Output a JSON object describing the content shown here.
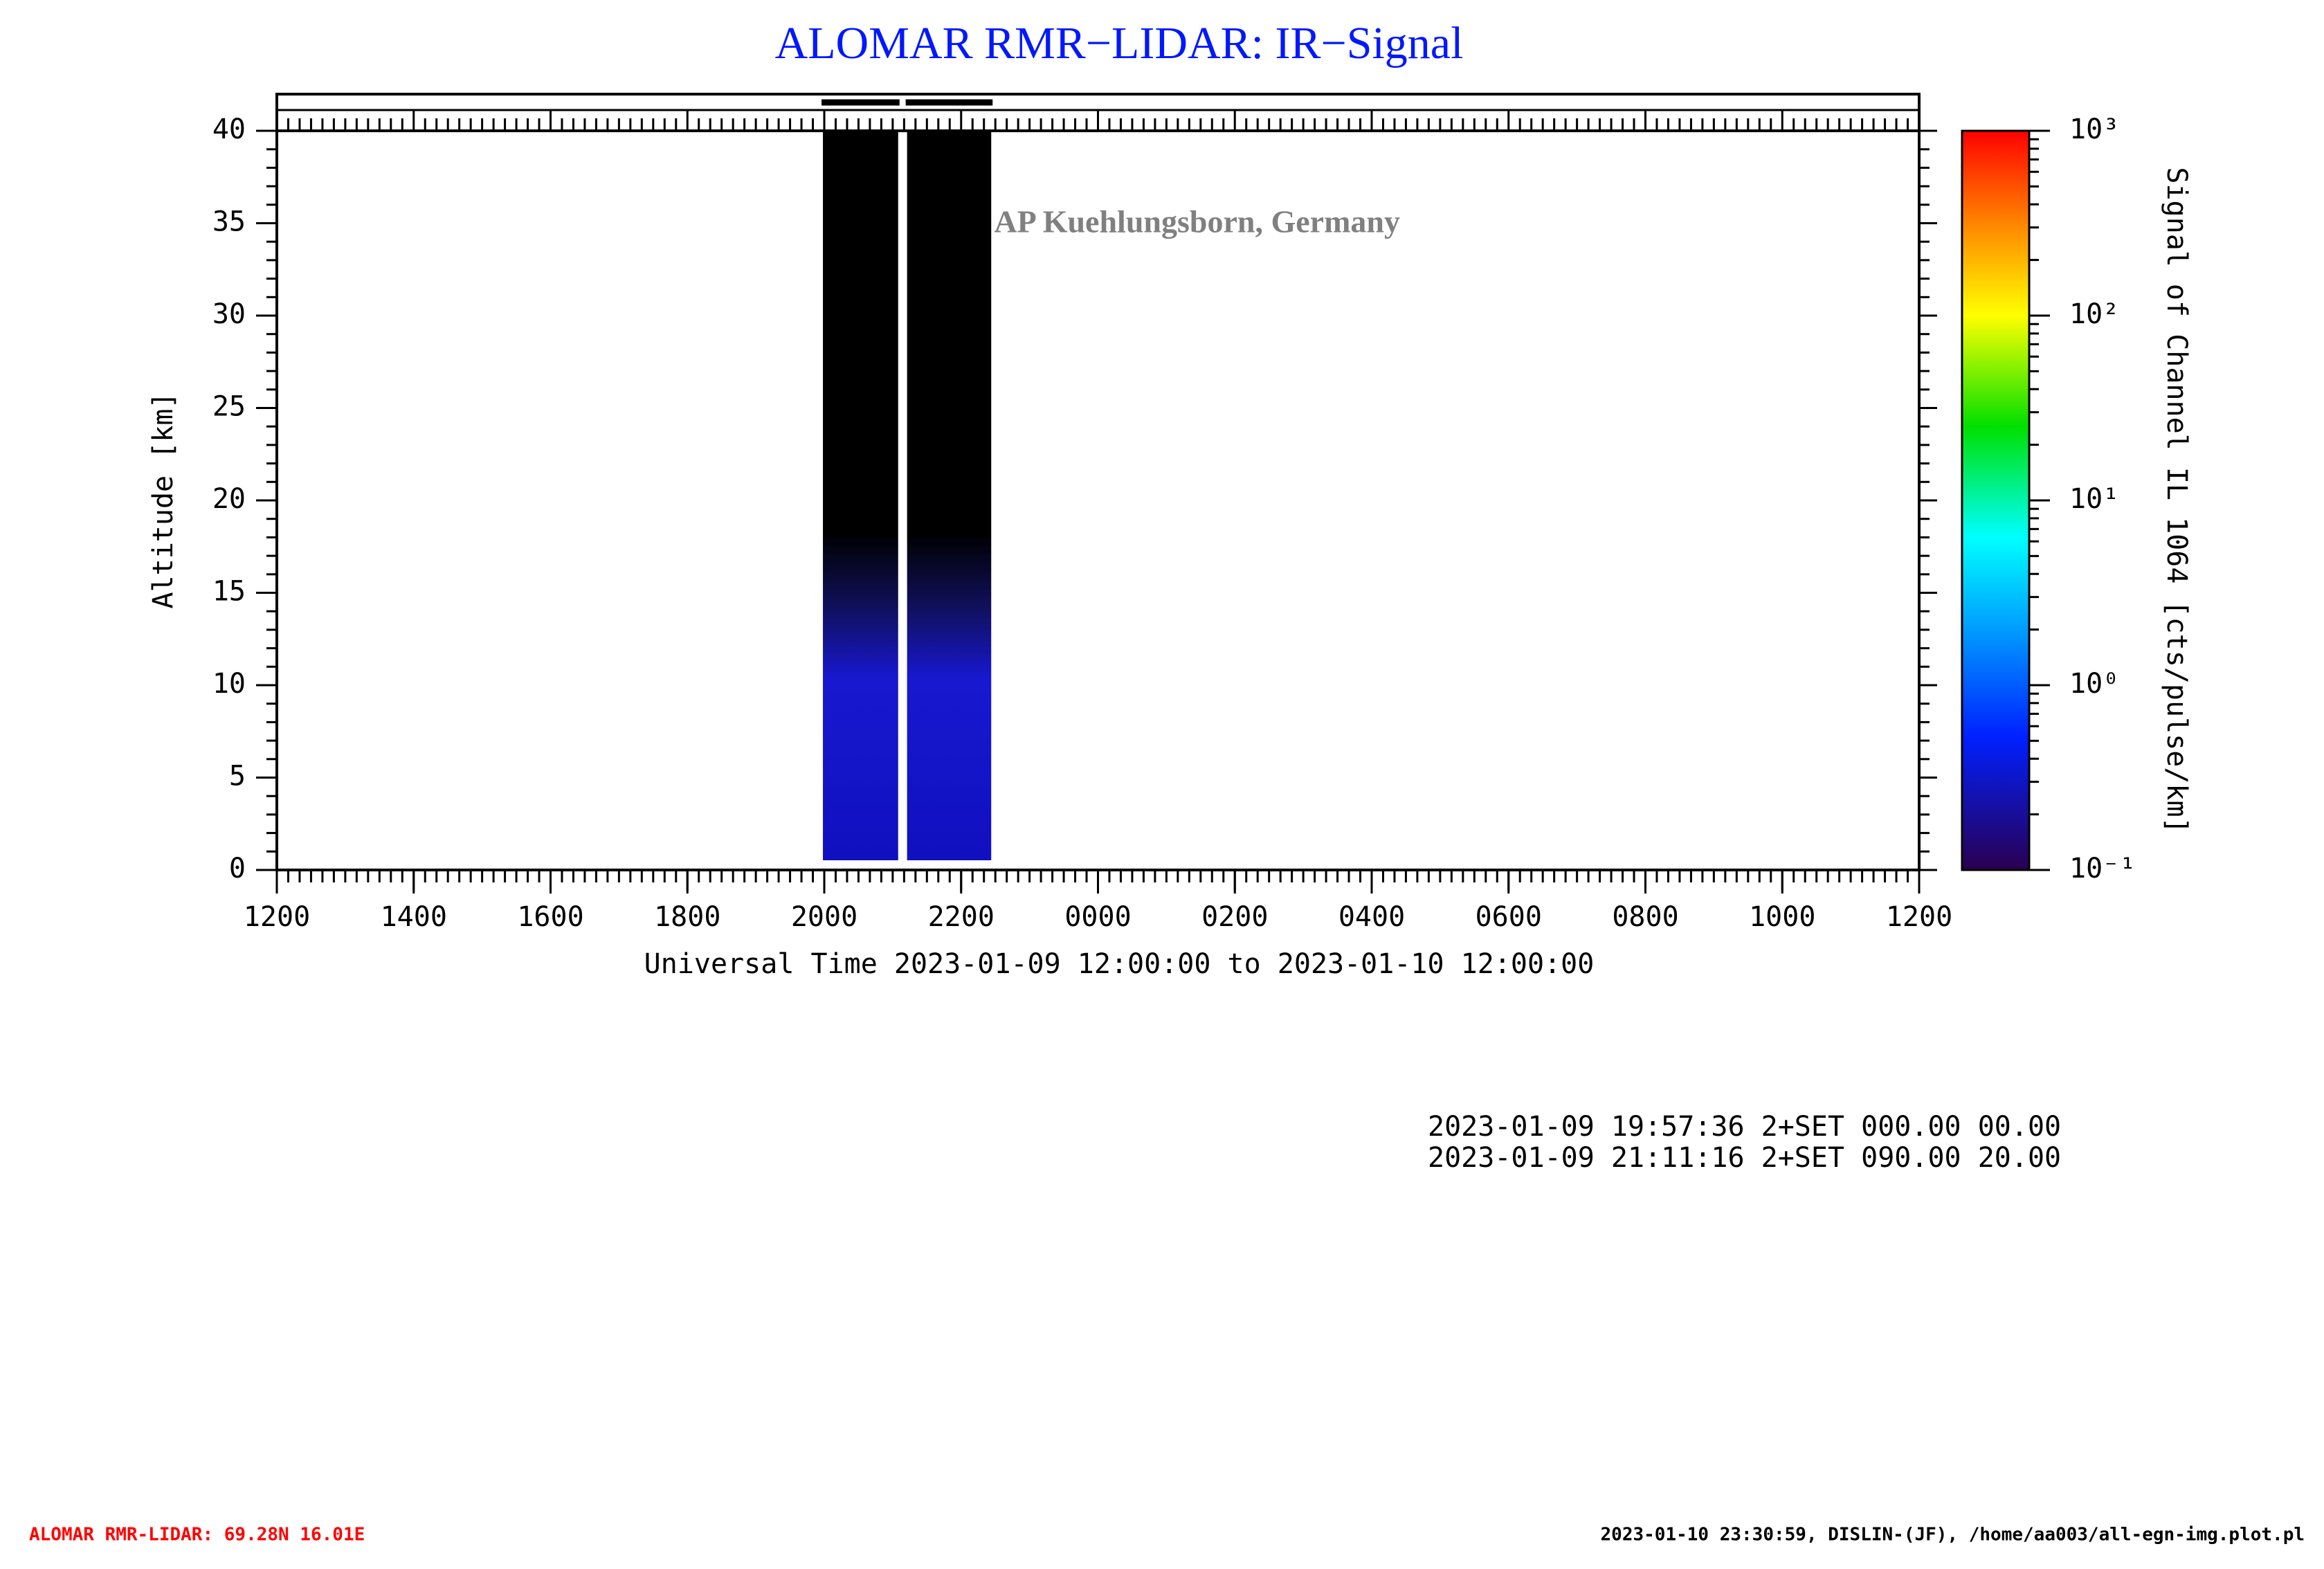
{
  "chart_data": {
    "type": "lidar-timeseries",
    "title": "ALOMAR RMR−LIDAR: IR−Signal",
    "watermark": "©IAP Kuehlungsborn, Germany",
    "x_label": "Universal Time 2023-01-09 12:00:00 to 2023-01-10 12:00:00",
    "y_label": "Altitude [km]",
    "xlim": [
      12,
      36
    ],
    "xticks": [
      {
        "value": 12,
        "label": "1200"
      },
      {
        "value": 14,
        "label": "1400"
      },
      {
        "value": 16,
        "label": "1600"
      },
      {
        "value": 18,
        "label": "1800"
      },
      {
        "value": 20,
        "label": "2000"
      },
      {
        "value": 22,
        "label": "2200"
      },
      {
        "value": 24,
        "label": "0000"
      },
      {
        "value": 26,
        "label": "0200"
      },
      {
        "value": 28,
        "label": "0400"
      },
      {
        "value": 30,
        "label": "0600"
      },
      {
        "value": 32,
        "label": "0800"
      },
      {
        "value": 34,
        "label": "1000"
      },
      {
        "value": 36,
        "label": "1200"
      }
    ],
    "ylim": [
      0,
      40
    ],
    "yticks": [
      0,
      5,
      10,
      15,
      20,
      25,
      30,
      35,
      40
    ],
    "measurements": [
      {
        "start": 19.96,
        "end": 21.1
      },
      {
        "start": 21.19,
        "end": 22.46
      }
    ],
    "colorbar": {
      "label": "Signal of Channel IL 1064 [cts/pulse/km]",
      "scale": "log",
      "lim": [
        0.1,
        1000
      ],
      "ticks": [
        {
          "value": 0.1,
          "label": "10⁻¹"
        },
        {
          "value": 1,
          "label": "10⁰"
        },
        {
          "value": 10,
          "label": "10¹"
        },
        {
          "value": 100,
          "label": "10²"
        },
        {
          "value": 1000,
          "label": "10³"
        }
      ]
    },
    "info_lines": [
      "2023-01-09 19:57:36 2+SET 000.00 00.00",
      "2023-01-09 21:11:16 2+SET 090.00 20.00"
    ],
    "footer_left": "ALOMAR RMR-LIDAR: 69.28N 16.01E",
    "footer_right": "2023-01-10 23:30:59, DISLIN-(JF), /home/aa003/all-egn-img.plot.pl"
  }
}
